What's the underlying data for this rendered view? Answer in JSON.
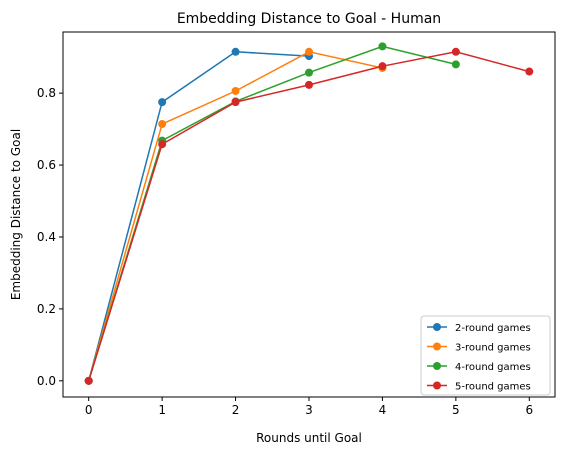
{
  "chart_data": {
    "type": "line",
    "title": "Embedding Distance to Goal - Human",
    "xlabel": "Rounds until Goal",
    "ylabel": "Embedding Distance to Goal",
    "xlim": [
      -0.35,
      6.35
    ],
    "ylim": [
      -0.045,
      0.97
    ],
    "xticks": [
      0,
      1,
      2,
      3,
      4,
      5,
      6
    ],
    "yticks": [
      0.0,
      0.2,
      0.4,
      0.6,
      0.8
    ],
    "ytick_labels": [
      "0.0",
      "0.2",
      "0.4",
      "0.6",
      "0.8"
    ],
    "grid": false,
    "legend_position": "lower-right",
    "series": [
      {
        "name": "2-round games",
        "color": "#1f77b4",
        "x": [
          0,
          1,
          2,
          3
        ],
        "y": [
          0.0,
          0.775,
          0.915,
          0.903
        ]
      },
      {
        "name": "3-round games",
        "color": "#ff7f0e",
        "x": [
          0,
          1,
          2,
          3,
          4
        ],
        "y": [
          0.0,
          0.714,
          0.806,
          0.915,
          0.87
        ]
      },
      {
        "name": "4-round games",
        "color": "#2ca02c",
        "x": [
          0,
          1,
          2,
          3,
          4,
          5
        ],
        "y": [
          0.0,
          0.668,
          0.777,
          0.857,
          0.93,
          0.88
        ]
      },
      {
        "name": "5-round games",
        "color": "#d62728",
        "x": [
          0,
          1,
          2,
          3,
          4,
          5,
          6
        ],
        "y": [
          0.0,
          0.658,
          0.775,
          0.823,
          0.875,
          0.915,
          0.86
        ]
      }
    ]
  }
}
